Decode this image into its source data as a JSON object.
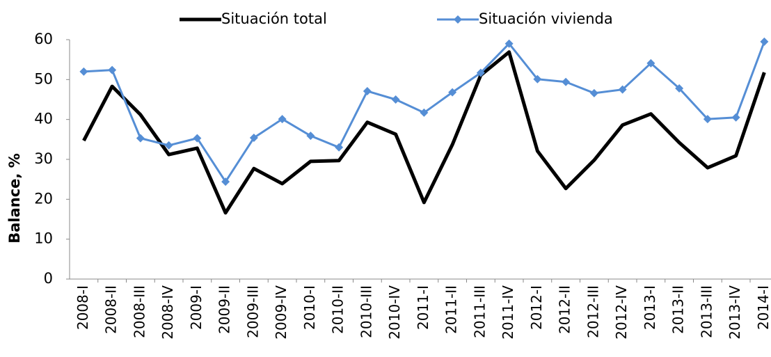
{
  "chart_data": {
    "type": "line",
    "y_label": "Balance, %",
    "categories": [
      "2008-I",
      "2008-II",
      "2008-III",
      "2008-IV",
      "2009-I",
      "2009-II",
      "2009-III",
      "2009-IV",
      "2010-I",
      "2010-II",
      "2010-III",
      "2010-IV",
      "2011-I",
      "2011-II",
      "2011-III",
      "2011-IV",
      "2012-I",
      "2012-II",
      "2012-III",
      "2012-IV",
      "2013-I",
      "2013-II",
      "2013-III",
      "2013-IV",
      "2014-I"
    ],
    "series": [
      {
        "name": "Situación total",
        "color": "#000000",
        "marker": "none",
        "values": [
          34.7,
          48.3,
          41.2,
          31.2,
          32.8,
          16.6,
          27.7,
          23.9,
          29.5,
          29.7,
          39.3,
          36.3,
          19.2,
          33.7,
          51.1,
          56.9,
          32.1,
          22.7,
          29.8,
          38.6,
          41.4,
          34.2,
          27.9,
          30.9,
          51.8
        ]
      },
      {
        "name": "Situación vivienda",
        "color": "#558ed5",
        "marker": "diamond",
        "values": [
          52.0,
          52.4,
          35.3,
          33.5,
          35.3,
          24.4,
          35.4,
          40.1,
          35.9,
          33.0,
          47.1,
          45.0,
          41.7,
          46.8,
          51.7,
          59.0,
          50.1,
          49.4,
          46.6,
          47.5,
          54.1,
          47.8,
          40.1,
          40.5,
          59.5
        ]
      }
    ],
    "ylim": [
      0,
      60
    ],
    "yticks": [
      0,
      10,
      20,
      30,
      40,
      50,
      60
    ],
    "grid": false,
    "legend": "top"
  }
}
